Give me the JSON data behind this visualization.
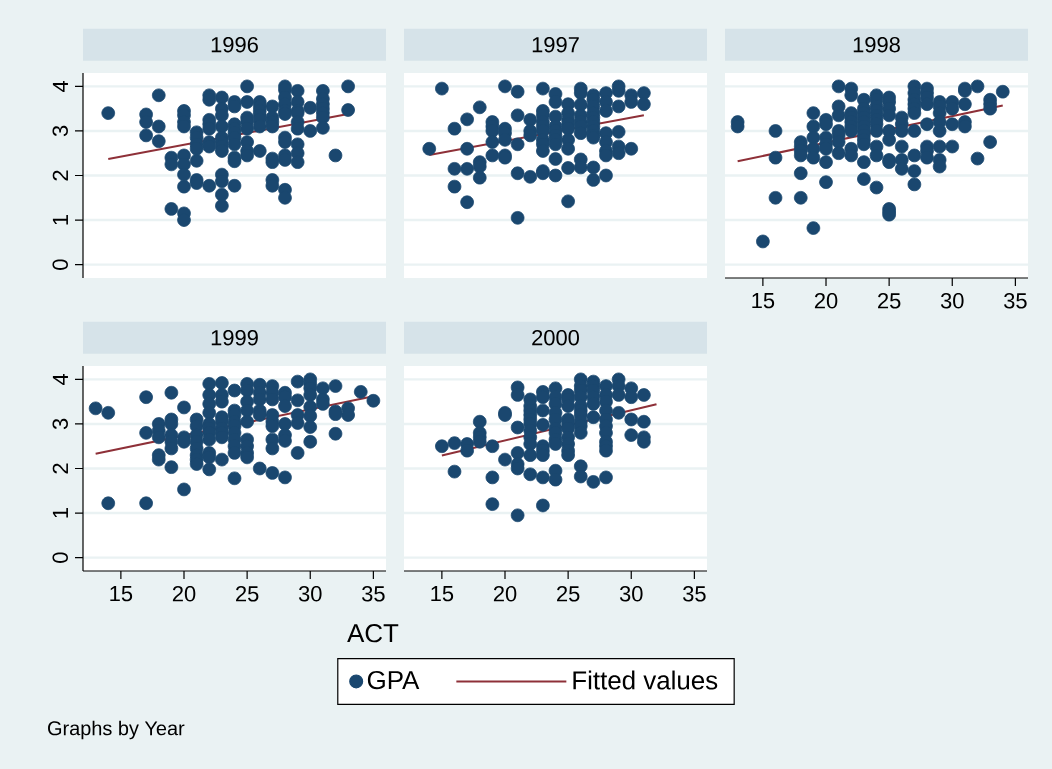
{
  "chart_data": [
    {
      "type": "scatter",
      "title": "1996",
      "xlim": [
        12,
        36
      ],
      "ylim": [
        -0.3,
        4.3
      ],
      "xticks": [
        15,
        20,
        25,
        30,
        35
      ],
      "yticks": [
        0,
        1,
        2,
        3,
        4
      ],
      "grid": "y",
      "tick_labels": "y",
      "legend": "bottom",
      "annotations": [
        "Graphs by Year"
      ],
      "series": [
        {
          "name": "GPA",
          "marker": "circle",
          "color": "#1a476f",
          "x": [
            14,
            17,
            17,
            17,
            18,
            18,
            18,
            19,
            19,
            19,
            20,
            20,
            20,
            20,
            20,
            20,
            20,
            20,
            20,
            20,
            21,
            21,
            21,
            21,
            21,
            21,
            21,
            22,
            22,
            22,
            22,
            22,
            22,
            22,
            22,
            23,
            23,
            23,
            23,
            23,
            23,
            23,
            23,
            23,
            23,
            23,
            23,
            24,
            24,
            24,
            24,
            24,
            24,
            24,
            24,
            24,
            24,
            25,
            25,
            25,
            25,
            25,
            25,
            25,
            25,
            26,
            26,
            26,
            26,
            26,
            26,
            26,
            27,
            27,
            27,
            27,
            27,
            27,
            27,
            27,
            28,
            28,
            28,
            28,
            28,
            28,
            28,
            28,
            28,
            28,
            28,
            28,
            29,
            29,
            29,
            29,
            29,
            29,
            29,
            29,
            29,
            30,
            30,
            31,
            31,
            31,
            31,
            31,
            31,
            31,
            32,
            33,
            33
          ],
          "values": [
            3.4,
            3.37,
            3.2,
            2.9,
            3.8,
            3.1,
            2.77,
            2.4,
            2.25,
            1.25,
            3.45,
            3.35,
            3.2,
            3.1,
            2.45,
            2.25,
            2.02,
            1.75,
            1.15,
            1.0,
            2.97,
            2.85,
            2.7,
            2.6,
            2.33,
            1.9,
            1.83,
            3.8,
            3.7,
            3.25,
            3.15,
            3.05,
            2.75,
            2.65,
            1.77,
            3.75,
            3.5,
            3.35,
            3.1,
            2.85,
            2.75,
            2.65,
            2.55,
            2.02,
            1.87,
            1.57,
            1.32,
            3.65,
            3.55,
            3.15,
            3.05,
            2.95,
            2.85,
            2.7,
            2.4,
            2.32,
            1.77,
            4.0,
            3.65,
            3.3,
            3.2,
            3.05,
            2.75,
            2.55,
            2.45,
            3.65,
            3.55,
            3.45,
            3.35,
            3.25,
            3.1,
            2.55,
            3.55,
            3.3,
            3.2,
            3.1,
            2.38,
            2.3,
            1.9,
            1.77,
            4.0,
            3.92,
            3.75,
            3.6,
            3.45,
            3.38,
            2.85,
            2.75,
            2.45,
            2.35,
            1.68,
            1.5,
            3.9,
            3.65,
            3.45,
            3.4,
            3.2,
            3.05,
            2.7,
            2.5,
            2.3,
            3.52,
            3.0,
            3.9,
            3.72,
            3.6,
            3.5,
            3.4,
            3.3,
            3.07,
            2.45,
            4.0,
            3.47
          ]
        },
        {
          "name": "Fitted values",
          "type": "line",
          "color": "#8e3038",
          "x": [
            14,
            33
          ],
          "values": [
            2.37,
            3.38
          ]
        }
      ]
    },
    {
      "type": "scatter",
      "title": "1997",
      "xlim": [
        12,
        36
      ],
      "ylim": [
        -0.3,
        4.3
      ],
      "xticks": [
        15,
        20,
        25,
        30,
        35
      ],
      "yticks": [
        0,
        1,
        2,
        3,
        4
      ],
      "grid": "y",
      "tick_labels": false,
      "series": [
        {
          "marker": "circle",
          "color": "#1a476f",
          "x": [
            14,
            15,
            16,
            16,
            16,
            17,
            17,
            17,
            17,
            18,
            18,
            18,
            18,
            19,
            19,
            19,
            19,
            19,
            20,
            20,
            20,
            20,
            20,
            20,
            21,
            21,
            21,
            21,
            21,
            22,
            22,
            22,
            22,
            23,
            23,
            23,
            23,
            23,
            23,
            23,
            23,
            23,
            23,
            23,
            24,
            24,
            24,
            24,
            24,
            24,
            24,
            24,
            24,
            24,
            25,
            25,
            25,
            25,
            25,
            25,
            25,
            25,
            25,
            26,
            26,
            26,
            26,
            26,
            26,
            26,
            26,
            26,
            27,
            27,
            27,
            27,
            27,
            27,
            27,
            27,
            27,
            27,
            27,
            27,
            28,
            28,
            28,
            28,
            28,
            28,
            28,
            28,
            29,
            29,
            29,
            29,
            29,
            29,
            30,
            30,
            30,
            31,
            31
          ],
          "values": [
            2.6,
            3.95,
            3.05,
            2.15,
            1.75,
            3.26,
            2.6,
            2.15,
            1.4,
            3.53,
            2.3,
            2.2,
            1.95,
            3.2,
            3.1,
            3.0,
            2.75,
            2.45,
            4.0,
            3.05,
            2.95,
            2.8,
            2.45,
            2.4,
            3.88,
            3.35,
            2.7,
            2.05,
            1.05,
            3.25,
            3.0,
            2.9,
            1.97,
            3.95,
            3.45,
            3.35,
            3.2,
            3.1,
            3.0,
            2.8,
            2.7,
            2.55,
            2.1,
            2.05,
            3.83,
            3.65,
            3.32,
            3.1,
            3.0,
            2.9,
            2.8,
            2.7,
            2.37,
            2.0,
            3.6,
            3.4,
            3.25,
            3.15,
            3.05,
            2.8,
            2.6,
            2.17,
            1.42,
            3.95,
            3.85,
            3.59,
            3.35,
            3.2,
            3.1,
            2.95,
            2.36,
            2.18,
            3.8,
            3.7,
            3.55,
            3.4,
            3.3,
            3.2,
            3.1,
            3.0,
            2.9,
            2.85,
            2.18,
            1.9,
            3.85,
            3.65,
            3.45,
            2.95,
            2.75,
            2.55,
            2.45,
            2.0,
            4.0,
            3.9,
            3.55,
            2.98,
            2.65,
            2.5,
            3.8,
            3.65,
            2.6,
            3.85,
            3.6
          ]
        },
        {
          "type": "line",
          "color": "#8e3038",
          "x": [
            14,
            31
          ],
          "values": [
            2.46,
            3.35
          ]
        }
      ]
    },
    {
      "type": "scatter",
      "title": "1998",
      "xlim": [
        12,
        36
      ],
      "ylim": [
        -0.3,
        4.3
      ],
      "xticks": [
        15,
        20,
        25,
        30,
        35
      ],
      "yticks": [
        0,
        1,
        2,
        3,
        4
      ],
      "grid": "y",
      "tick_labels": "x",
      "series": [
        {
          "marker": "circle",
          "color": "#1a476f",
          "x": [
            13,
            13,
            15,
            16,
            16,
            16,
            18,
            18,
            18,
            18,
            18,
            18,
            19,
            19,
            19,
            19,
            19,
            19,
            20,
            20,
            20,
            20,
            20,
            20,
            20,
            21,
            21,
            21,
            21,
            21,
            21,
            21,
            22,
            22,
            22,
            22,
            22,
            22,
            22,
            22,
            22,
            23,
            23,
            23,
            23,
            23,
            23,
            23,
            23,
            23,
            23,
            23,
            23,
            24,
            24,
            24,
            24,
            24,
            24,
            24,
            24,
            24,
            24,
            24,
            25,
            25,
            25,
            25,
            25,
            25,
            25,
            25,
            25,
            25,
            25,
            26,
            26,
            26,
            26,
            26,
            26,
            27,
            27,
            27,
            27,
            27,
            27,
            27,
            27,
            27,
            27,
            28,
            28,
            28,
            28,
            28,
            28,
            28,
            28,
            29,
            29,
            29,
            29,
            29,
            29,
            29,
            29,
            30,
            30,
            30,
            30,
            31,
            31,
            31,
            31,
            31,
            32,
            32,
            33,
            33,
            33,
            33,
            34
          ],
          "values": [
            3.2,
            3.1,
            0.52,
            3.0,
            2.4,
            1.5,
            2.75,
            2.65,
            2.55,
            2.45,
            2.05,
            1.5,
            3.4,
            3.1,
            2.85,
            2.6,
            2.4,
            0.82,
            3.25,
            3.15,
            2.85,
            2.7,
            2.6,
            2.3,
            1.85,
            4.0,
            3.55,
            3.35,
            3.0,
            2.9,
            2.75,
            2.5,
            3.95,
            3.8,
            3.4,
            3.3,
            3.2,
            3.1,
            3.0,
            2.6,
            2.45,
            3.7,
            3.5,
            3.4,
            3.3,
            3.2,
            3.1,
            3.0,
            2.9,
            2.8,
            2.7,
            2.3,
            1.92,
            3.8,
            3.7,
            3.55,
            3.45,
            3.35,
            3.25,
            3.15,
            3.0,
            2.65,
            2.45,
            1.73,
            3.75,
            3.65,
            3.5,
            3.35,
            3.0,
            2.8,
            2.35,
            2.3,
            1.25,
            1.18,
            1.12,
            3.3,
            3.15,
            3.0,
            2.65,
            2.35,
            2.15,
            4.0,
            3.85,
            3.7,
            3.6,
            3.5,
            3.4,
            3.0,
            2.45,
            2.1,
            1.8,
            3.95,
            3.85,
            3.75,
            3.6,
            3.15,
            2.65,
            2.55,
            2.4,
            3.65,
            3.55,
            3.4,
            3.2,
            3.0,
            2.65,
            2.35,
            2.2,
            3.65,
            3.5,
            3.15,
            2.65,
            3.95,
            3.9,
            3.6,
            3.2,
            3.1,
            4.0,
            2.38,
            3.7,
            3.6,
            3.5,
            2.75,
            3.88
          ]
        },
        {
          "type": "line",
          "color": "#8e3038",
          "x": [
            13,
            34
          ],
          "values": [
            2.32,
            3.57
          ]
        }
      ]
    },
    {
      "type": "scatter",
      "title": "1999",
      "xlabel": "ACT",
      "xlim": [
        12,
        36
      ],
      "ylim": [
        -0.3,
        4.3
      ],
      "xticks": [
        15,
        20,
        25,
        30,
        35
      ],
      "yticks": [
        0,
        1,
        2,
        3,
        4
      ],
      "grid": "y",
      "series": [
        {
          "marker": "circle",
          "color": "#1a476f",
          "x": [
            13,
            14,
            14,
            17,
            17,
            17,
            18,
            18,
            18,
            18,
            18,
            19,
            19,
            19,
            19,
            19,
            19,
            19,
            20,
            20,
            20,
            20,
            21,
            21,
            21,
            21,
            21,
            21,
            21,
            21,
            22,
            22,
            22,
            22,
            22,
            22,
            22,
            22,
            22,
            22,
            22,
            23,
            23,
            23,
            23,
            23,
            23,
            23,
            23,
            23,
            24,
            24,
            24,
            24,
            24,
            24,
            24,
            24,
            24,
            24,
            25,
            25,
            25,
            25,
            25,
            25,
            25,
            25,
            25,
            26,
            26,
            26,
            26,
            26,
            26,
            27,
            27,
            27,
            27,
            27,
            27,
            27,
            27,
            27,
            28,
            28,
            28,
            28,
            28,
            28,
            28,
            29,
            29,
            29,
            29,
            29,
            30,
            30,
            30,
            30,
            30,
            30,
            30,
            30,
            31,
            31,
            31,
            32,
            32,
            32,
            32,
            33,
            33,
            34,
            35
          ],
          "values": [
            3.35,
            3.25,
            1.22,
            3.6,
            2.8,
            1.22,
            3.0,
            2.85,
            2.7,
            2.3,
            2.2,
            3.7,
            3.1,
            3.0,
            2.75,
            2.6,
            2.45,
            2.03,
            3.37,
            2.7,
            2.6,
            1.53,
            3.1,
            2.95,
            2.75,
            2.6,
            2.45,
            2.3,
            2.2,
            2.1,
            3.9,
            3.65,
            3.45,
            3.25,
            3.0,
            2.9,
            2.8,
            2.65,
            2.35,
            2.25,
            1.98,
            3.92,
            3.65,
            3.5,
            3.15,
            3.05,
            2.9,
            2.8,
            2.7,
            2.2,
            3.75,
            3.3,
            3.2,
            3.05,
            2.95,
            2.8,
            2.65,
            2.5,
            2.35,
            1.78,
            3.9,
            3.75,
            3.5,
            3.3,
            3.05,
            2.65,
            2.5,
            2.35,
            2.25,
            3.88,
            3.7,
            3.55,
            3.3,
            3.2,
            2.0,
            3.85,
            3.7,
            3.55,
            3.2,
            3.05,
            2.95,
            2.65,
            2.45,
            1.9,
            3.7,
            3.6,
            3.4,
            3.0,
            2.75,
            2.62,
            1.8,
            3.95,
            3.53,
            3.2,
            3.02,
            2.35,
            4.0,
            3.9,
            3.8,
            3.65,
            3.38,
            3.18,
            2.93,
            2.6,
            3.8,
            3.55,
            3.45,
            3.85,
            3.28,
            3.22,
            2.78,
            3.35,
            3.2,
            3.72,
            3.52
          ]
        },
        {
          "type": "line",
          "color": "#8e3038",
          "x": [
            13,
            35
          ],
          "values": [
            2.33,
            3.62
          ]
        }
      ]
    },
    {
      "type": "scatter",
      "title": "2000",
      "xlim": [
        12,
        36
      ],
      "ylim": [
        -0.3,
        4.3
      ],
      "xticks": [
        15,
        20,
        25,
        30,
        35
      ],
      "yticks": [
        0,
        1,
        2,
        3,
        4
      ],
      "grid": "y",
      "tick_labels": "x",
      "series": [
        {
          "marker": "circle",
          "color": "#1a476f",
          "x": [
            15,
            16,
            16,
            17,
            17,
            18,
            18,
            18,
            18,
            19,
            19,
            19,
            20,
            20,
            20,
            21,
            21,
            21,
            21,
            21,
            21,
            21,
            22,
            22,
            22,
            22,
            22,
            22,
            22,
            22,
            22,
            22,
            22,
            23,
            23,
            23,
            23,
            23,
            23,
            23,
            23,
            23,
            24,
            24,
            24,
            24,
            24,
            24,
            24,
            24,
            24,
            24,
            24,
            25,
            25,
            25,
            25,
            25,
            25,
            25,
            25,
            25,
            25,
            26,
            26,
            26,
            26,
            26,
            26,
            26,
            26,
            26,
            26,
            26,
            26,
            27,
            27,
            27,
            27,
            27,
            27,
            27,
            28,
            28,
            28,
            28,
            28,
            28,
            28,
            28,
            28,
            28,
            28,
            29,
            29,
            29,
            29,
            30,
            30,
            30,
            30,
            31,
            31,
            31,
            31
          ],
          "values": [
            2.5,
            2.57,
            1.93,
            2.55,
            2.4,
            3.05,
            2.8,
            2.7,
            2.6,
            2.5,
            1.8,
            1.2,
            3.25,
            3.2,
            2.2,
            3.82,
            3.65,
            2.92,
            2.35,
            2.1,
            2.0,
            0.95,
            3.55,
            3.4,
            3.3,
            3.2,
            3.1,
            3.0,
            2.85,
            2.7,
            2.55,
            2.3,
            1.87,
            3.72,
            3.6,
            3.3,
            2.98,
            2.5,
            2.4,
            2.3,
            1.8,
            1.17,
            3.8,
            3.6,
            3.45,
            3.25,
            3.1,
            2.9,
            2.8,
            2.65,
            2.55,
            1.95,
            1.75,
            3.65,
            3.55,
            3.4,
            3.1,
            3.0,
            2.9,
            2.7,
            2.55,
            2.4,
            2.3,
            4.0,
            3.85,
            3.75,
            3.6,
            3.4,
            3.3,
            3.2,
            3.05,
            2.95,
            2.8,
            2.05,
            1.82,
            3.95,
            3.85,
            3.75,
            3.6,
            3.45,
            3.15,
            1.7,
            3.85,
            3.65,
            3.5,
            3.3,
            3.1,
            2.95,
            2.8,
            2.6,
            2.5,
            2.4,
            1.8,
            4.0,
            3.85,
            3.65,
            3.25,
            3.8,
            3.6,
            3.1,
            2.75,
            3.65,
            3.05,
            2.7,
            2.6
          ]
        },
        {
          "type": "line",
          "color": "#8e3038",
          "x": [
            15,
            32
          ],
          "values": [
            2.29,
            3.44
          ]
        }
      ]
    }
  ]
}
